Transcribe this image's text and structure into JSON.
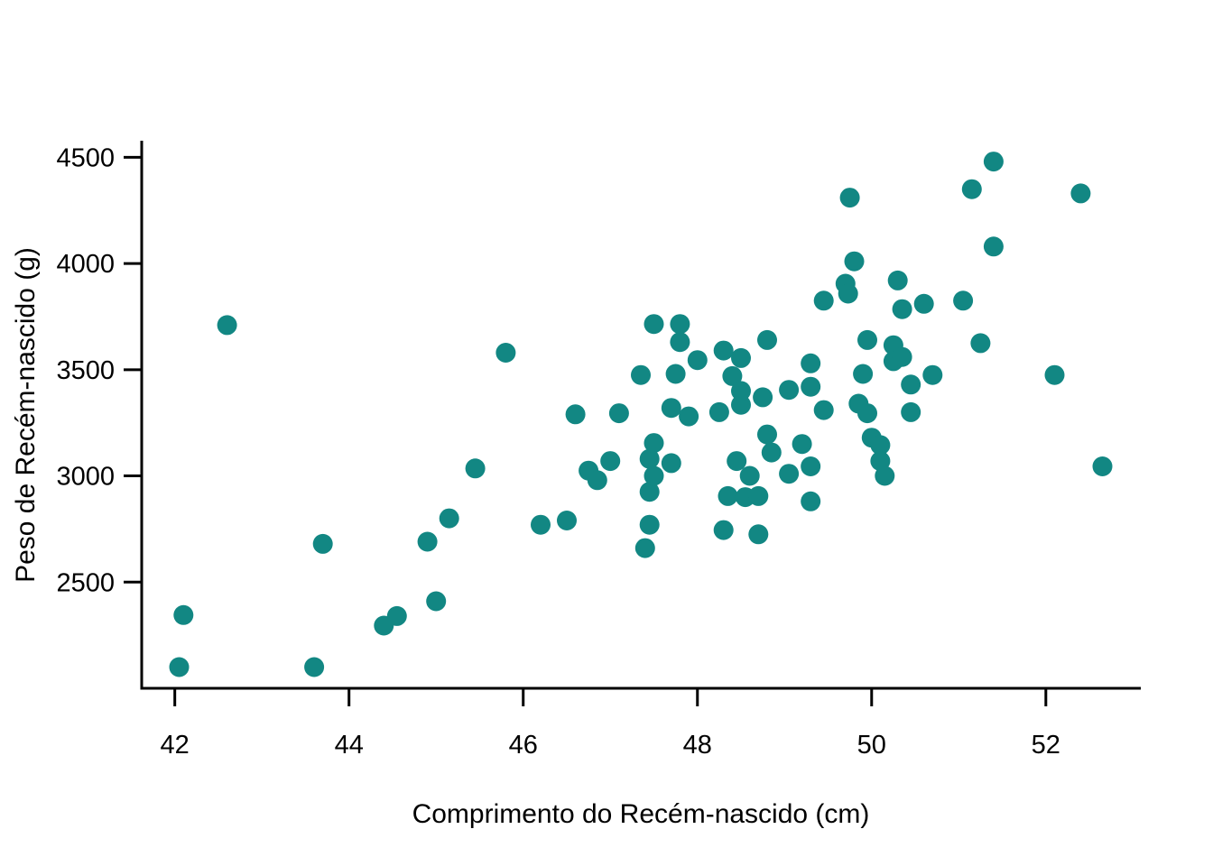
{
  "chart_data": {
    "type": "scatter",
    "title": "",
    "xlabel": "Comprimento do Recém-nascido (cm)",
    "ylabel": "Peso de Recém-nascido (g)",
    "x_ticks": [
      42,
      44,
      46,
      48,
      50,
      52
    ],
    "y_ticks": [
      2500,
      3000,
      3500,
      4000,
      4500
    ],
    "xlim": [
      41.62,
      53.09
    ],
    "ylim": [
      2000,
      4578
    ],
    "grid": false,
    "legend": "none",
    "point_color": "#128783",
    "axis_color": "#000000",
    "points": [
      [
        42.05,
        2100
      ],
      [
        42.1,
        2345
      ],
      [
        42.6,
        3710
      ],
      [
        43.6,
        2100
      ],
      [
        43.7,
        2680
      ],
      [
        44.4,
        2295
      ],
      [
        44.55,
        2340
      ],
      [
        44.9,
        2690
      ],
      [
        45.0,
        2410
      ],
      [
        45.15,
        2800
      ],
      [
        45.45,
        3035
      ],
      [
        45.8,
        3580
      ],
      [
        46.2,
        2770
      ],
      [
        46.5,
        2790
      ],
      [
        46.6,
        3290
      ],
      [
        46.75,
        3025
      ],
      [
        46.85,
        2980
      ],
      [
        47.0,
        3070
      ],
      [
        47.1,
        3295
      ],
      [
        47.35,
        3475
      ],
      [
        47.4,
        2660
      ],
      [
        47.45,
        2770
      ],
      [
        47.45,
        2925
      ],
      [
        47.45,
        3080
      ],
      [
        47.5,
        3000
      ],
      [
        47.5,
        3155
      ],
      [
        47.5,
        3715
      ],
      [
        47.7,
        3060
      ],
      [
        47.7,
        3320
      ],
      [
        47.75,
        3480
      ],
      [
        47.8,
        3630
      ],
      [
        47.8,
        3715
      ],
      [
        47.9,
        3280
      ],
      [
        48.0,
        3545
      ],
      [
        48.25,
        3300
      ],
      [
        48.3,
        2745
      ],
      [
        48.3,
        3590
      ],
      [
        48.35,
        2905
      ],
      [
        48.4,
        3470
      ],
      [
        48.45,
        3070
      ],
      [
        48.5,
        3335
      ],
      [
        48.5,
        3555
      ],
      [
        48.5,
        3400
      ],
      [
        48.55,
        2900
      ],
      [
        48.6,
        3000
      ],
      [
        48.7,
        2725
      ],
      [
        48.7,
        2905
      ],
      [
        48.75,
        3370
      ],
      [
        48.8,
        3195
      ],
      [
        48.85,
        3110
      ],
      [
        48.8,
        3640
      ],
      [
        49.05,
        3010
      ],
      [
        49.05,
        3405
      ],
      [
        49.2,
        3150
      ],
      [
        49.3,
        2880
      ],
      [
        49.3,
        3045
      ],
      [
        49.3,
        3420
      ],
      [
        49.3,
        3530
      ],
      [
        49.45,
        3310
      ],
      [
        49.45,
        3825
      ],
      [
        49.7,
        3905
      ],
      [
        49.73,
        3858
      ],
      [
        49.75,
        4310
      ],
      [
        49.8,
        4010
      ],
      [
        49.85,
        3340
      ],
      [
        49.9,
        3480
      ],
      [
        49.95,
        3295
      ],
      [
        49.95,
        3640
      ],
      [
        50.0,
        3180
      ],
      [
        50.1,
        3145
      ],
      [
        50.1,
        3070
      ],
      [
        50.15,
        3000
      ],
      [
        50.25,
        3615
      ],
      [
        50.25,
        3540
      ],
      [
        50.35,
        3560
      ],
      [
        50.3,
        3920
      ],
      [
        50.35,
        3785
      ],
      [
        50.45,
        3300
      ],
      [
        50.45,
        3430
      ],
      [
        50.6,
        3810
      ],
      [
        50.7,
        3475
      ],
      [
        51.05,
        3825
      ],
      [
        51.15,
        4350
      ],
      [
        51.25,
        3625
      ],
      [
        51.4,
        4080
      ],
      [
        51.4,
        4480
      ],
      [
        52.1,
        3475
      ],
      [
        52.4,
        4330
      ],
      [
        52.65,
        3045
      ]
    ]
  }
}
